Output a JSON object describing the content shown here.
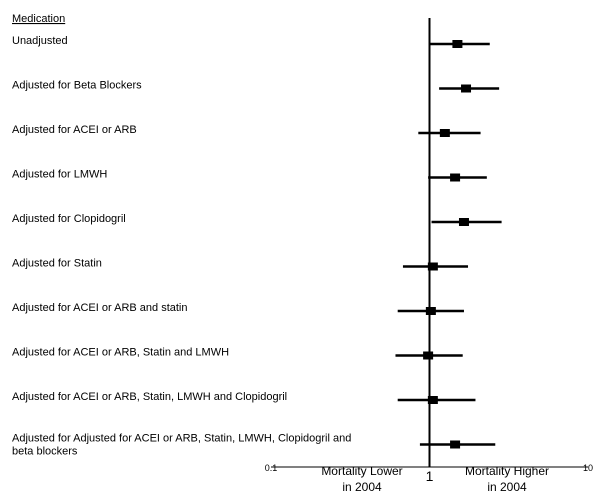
{
  "chart_data": {
    "type": "forest",
    "column_header": "Medication",
    "x_scale": "log",
    "xlim": [
      0.1,
      10
    ],
    "x_ticks": [
      {
        "value": 0.1,
        "label": "0.1"
      },
      {
        "value": 1,
        "label": "1"
      },
      {
        "value": 10,
        "label": "10"
      }
    ],
    "reference_line": 1,
    "direction_labels": {
      "left": [
        "Mortality Lower",
        "in 2004"
      ],
      "right": [
        "Mortality Higher",
        "in 2004"
      ]
    },
    "rows": [
      {
        "label": [
          "Unadjusted"
        ],
        "estimate": 1.5,
        "lower": 1.0,
        "upper": 2.4
      },
      {
        "label": [
          "Adjusted for Beta Blockers"
        ],
        "estimate": 1.7,
        "lower": 1.15,
        "upper": 2.75
      },
      {
        "label": [
          "Adjusted for ACEI or ARB"
        ],
        "estimate": 1.25,
        "lower": 0.85,
        "upper": 2.1
      },
      {
        "label": [
          "Adjusted for LMWH"
        ],
        "estimate": 1.45,
        "lower": 0.98,
        "upper": 2.3
      },
      {
        "label": [
          "Adjusted for  Clopidogril"
        ],
        "estimate": 1.65,
        "lower": 1.03,
        "upper": 2.85
      },
      {
        "label": [
          "Adjusted for Statin"
        ],
        "estimate": 1.05,
        "lower": 0.68,
        "upper": 1.75
      },
      {
        "label": [
          "Adjusted for ACEI or ARB and statin"
        ],
        "estimate": 1.02,
        "lower": 0.63,
        "upper": 1.65
      },
      {
        "label": [
          "Adjusted for ACEI or ARB, Statin and LMWH"
        ],
        "estimate": 0.98,
        "lower": 0.61,
        "upper": 1.62
      },
      {
        "label": [
          "Adjusted for ACEI or ARB, Statin,  LMWH and Clopidogril"
        ],
        "estimate": 1.05,
        "lower": 0.63,
        "upper": 1.95
      },
      {
        "label": [
          "Adjusted for Adjusted for ACEI or ARB, Statin,  LMWH, Clopidogril and",
          "beta blockers"
        ],
        "estimate": 1.45,
        "lower": 0.87,
        "upper": 2.6
      }
    ]
  }
}
